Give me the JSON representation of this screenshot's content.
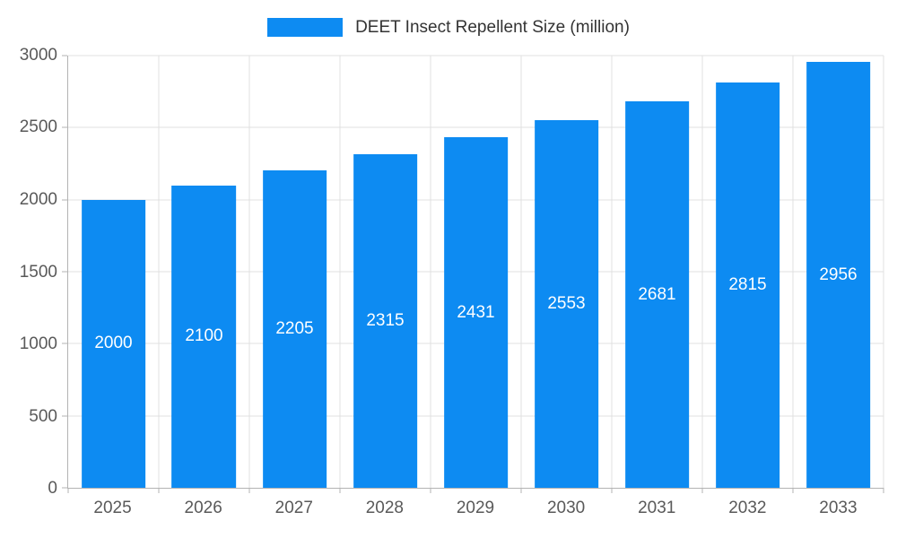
{
  "legend": {
    "label": "DEET Insect Repellent Size (million)"
  },
  "colors": {
    "bar": "#0d8bf2",
    "grid": "#e0e0e0",
    "axis": "#b3b3b3",
    "tick_text": "#595959",
    "value_label": "#ffffff"
  },
  "chart_data": {
    "type": "bar",
    "title": "DEET Insect Repellent Size (million)",
    "categories": [
      "2025",
      "2026",
      "2027",
      "2028",
      "2029",
      "2030",
      "2031",
      "2032",
      "2033"
    ],
    "values": [
      2000,
      2100,
      2205,
      2315,
      2431,
      2553,
      2681,
      2815,
      2956
    ],
    "xlabel": "",
    "ylabel": "",
    "ylim": [
      0,
      3000
    ],
    "yticks": [
      0,
      500,
      1000,
      1500,
      2000,
      2500,
      3000
    ],
    "grid": true,
    "legend_position": "top",
    "bar_labels": "inside-center-white"
  }
}
